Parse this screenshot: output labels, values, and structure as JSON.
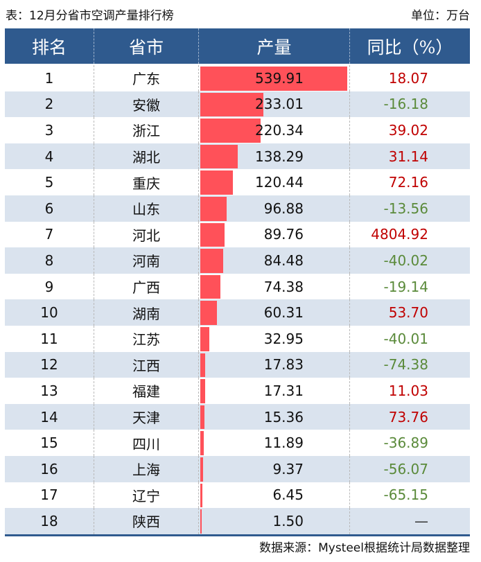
{
  "caption": "表：12月分省市空调产量排行榜",
  "unit": "单位：万台",
  "source": "数据来源：Mysteel根据统计局数据整理",
  "colors": {
    "header_bg": "#2f5a8e",
    "alt_row_bg": "#dae3ee",
    "bar": "#ff5159",
    "positive": "#c00000",
    "negative": "#5a8a3a"
  },
  "table": {
    "headers": [
      "排名",
      "省市",
      "产量",
      "同比（%）"
    ],
    "max_value": 539.91,
    "rows": [
      {
        "rank": "1",
        "province": "广东",
        "production": "539.91",
        "yoy": "18.07",
        "sign": "pos"
      },
      {
        "rank": "2",
        "province": "安徽",
        "production": "233.01",
        "yoy": "-16.18",
        "sign": "neg"
      },
      {
        "rank": "3",
        "province": "浙江",
        "production": "220.34",
        "yoy": "39.02",
        "sign": "pos"
      },
      {
        "rank": "4",
        "province": "湖北",
        "production": "138.29",
        "yoy": "31.14",
        "sign": "pos"
      },
      {
        "rank": "5",
        "province": "重庆",
        "production": "120.44",
        "yoy": "72.16",
        "sign": "pos"
      },
      {
        "rank": "6",
        "province": "山东",
        "production": "96.88",
        "yoy": "-13.56",
        "sign": "neg"
      },
      {
        "rank": "7",
        "province": "河北",
        "production": "89.76",
        "yoy": "4804.92",
        "sign": "pos"
      },
      {
        "rank": "8",
        "province": "河南",
        "production": "84.48",
        "yoy": "-40.02",
        "sign": "neg"
      },
      {
        "rank": "9",
        "province": "广西",
        "production": "74.38",
        "yoy": "-19.14",
        "sign": "neg"
      },
      {
        "rank": "10",
        "province": "湖南",
        "production": "60.31",
        "yoy": "53.70",
        "sign": "pos"
      },
      {
        "rank": "11",
        "province": "江苏",
        "production": "32.95",
        "yoy": "-40.01",
        "sign": "neg"
      },
      {
        "rank": "12",
        "province": "江西",
        "production": "17.83",
        "yoy": "-74.38",
        "sign": "neg"
      },
      {
        "rank": "13",
        "province": "福建",
        "production": "17.31",
        "yoy": "11.03",
        "sign": "pos"
      },
      {
        "rank": "14",
        "province": "天津",
        "production": "15.36",
        "yoy": "73.76",
        "sign": "pos"
      },
      {
        "rank": "15",
        "province": "四川",
        "production": "11.89",
        "yoy": "-36.89",
        "sign": "neg"
      },
      {
        "rank": "16",
        "province": "上海",
        "production": "9.37",
        "yoy": "-56.07",
        "sign": "neg"
      },
      {
        "rank": "17",
        "province": "辽宁",
        "production": "6.45",
        "yoy": "-65.15",
        "sign": "neg"
      },
      {
        "rank": "18",
        "province": "陕西",
        "production": "1.50",
        "yoy": "—",
        "sign": "na"
      }
    ]
  }
}
